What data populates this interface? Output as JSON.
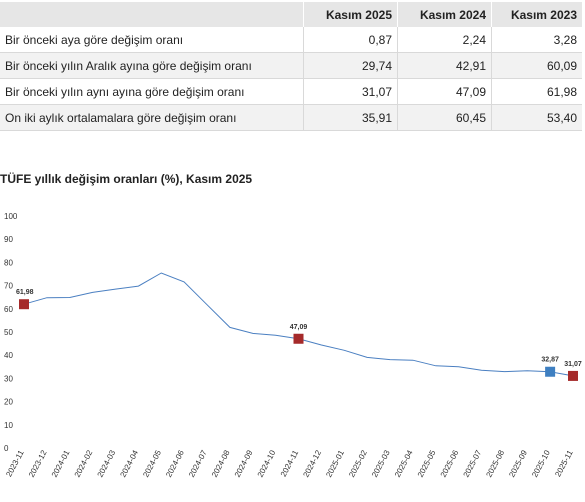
{
  "table": {
    "headers": [
      "",
      "Kasım 2025",
      "Kasım 2024",
      "Kasım 2023"
    ],
    "rows": [
      {
        "label": "Bir önceki aya göre değişim oranı",
        "values": [
          "0,87",
          "2,24",
          "3,28"
        ]
      },
      {
        "label": "Bir önceki yılın Aralık ayına göre değişim oranı",
        "values": [
          "29,74",
          "42,91",
          "60,09"
        ]
      },
      {
        "label": "Bir önceki yılın aynı ayına göre değişim oranı",
        "values": [
          "31,07",
          "47,09",
          "61,98"
        ]
      },
      {
        "label": "On iki aylık ortalamalara göre değişim oranı",
        "values": [
          "35,91",
          "60,45",
          "53,40"
        ]
      }
    ]
  },
  "chart_data": {
    "type": "line",
    "title": "TÜFE yıllık değişim oranları (%), Kasım 2025",
    "xlabel": "",
    "ylabel": "",
    "ylim": [
      0,
      100
    ],
    "yticks": [
      0,
      10,
      20,
      30,
      40,
      50,
      60,
      70,
      80,
      90,
      100
    ],
    "categories": [
      "2023-11",
      "2023-12",
      "2024-01",
      "2024-02",
      "2024-03",
      "2024-04",
      "2024-05",
      "2024-06",
      "2024-07",
      "2024-08",
      "2024-09",
      "2024-10",
      "2024-11",
      "2024-12",
      "2025-01",
      "2025-02",
      "2025-03",
      "2025-04",
      "2025-05",
      "2025-06",
      "2025-07",
      "2025-08",
      "2025-09",
      "2025-10",
      "2025-11"
    ],
    "series": [
      {
        "values": [
          61.98,
          64.77,
          64.86,
          67.07,
          68.5,
          69.8,
          75.45,
          71.6,
          61.78,
          51.97,
          49.38,
          48.58,
          47.09,
          44.38,
          42.12,
          39.05,
          38.1,
          37.86,
          35.41,
          35.05,
          33.52,
          32.95,
          33.29,
          32.87,
          31.07
        ],
        "color": "#4a7fc1"
      }
    ],
    "markers": [
      {
        "index": 0,
        "label": "61,98",
        "color": "#a52a2a"
      },
      {
        "index": 12,
        "label": "47,09",
        "color": "#a52a2a"
      },
      {
        "index": 23,
        "label": "32,87",
        "color": "#3e7fc1"
      },
      {
        "index": 24,
        "label": "31,07",
        "color": "#a52a2a"
      }
    ],
    "grid": false
  }
}
